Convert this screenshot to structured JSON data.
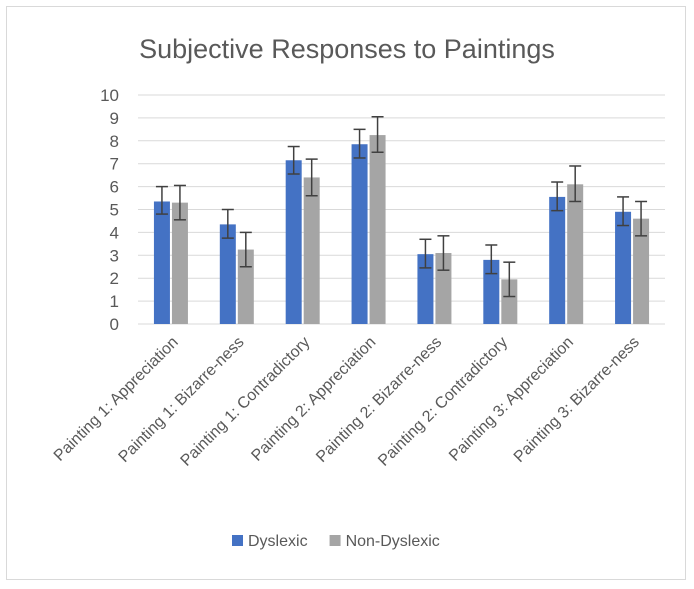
{
  "chart_data": {
    "type": "bar",
    "title": "Subjective Responses to Paintings",
    "categories": [
      "Painting 1: Appreciation",
      "Painting 1: Bizarre-ness",
      "Painting 1: Contradictory",
      "Painting 2: Appreciation",
      "Painting 2: Bizarre-ness",
      "Painting 2: Contradictory",
      "Painting 3: Appreciation",
      "Painting 3: Bizarre-ness"
    ],
    "series": [
      {
        "name": "Dyslexic",
        "color": "#4472c4",
        "values": [
          5.35,
          4.35,
          7.15,
          7.85,
          3.05,
          2.8,
          5.55,
          4.9
        ],
        "error_low": [
          4.8,
          3.75,
          6.55,
          7.25,
          2.45,
          2.2,
          4.95,
          4.3
        ],
        "error_high": [
          6.0,
          5.0,
          7.75,
          8.5,
          3.7,
          3.45,
          6.2,
          5.55
        ]
      },
      {
        "name": "Non-Dyslexic",
        "color": "#a5a5a5",
        "values": [
          5.3,
          3.25,
          6.4,
          8.25,
          3.1,
          1.95,
          6.1,
          4.6
        ],
        "error_low": [
          4.55,
          2.5,
          5.6,
          7.5,
          2.35,
          1.2,
          5.35,
          3.85
        ],
        "error_high": [
          6.05,
          4.0,
          7.2,
          9.05,
          3.85,
          2.7,
          6.9,
          5.35
        ]
      }
    ],
    "ylim": [
      0,
      10
    ],
    "yticks": [
      0,
      1,
      2,
      3,
      4,
      5,
      6,
      7,
      8,
      9,
      10
    ],
    "grid": true,
    "legend_position": "bottom"
  }
}
